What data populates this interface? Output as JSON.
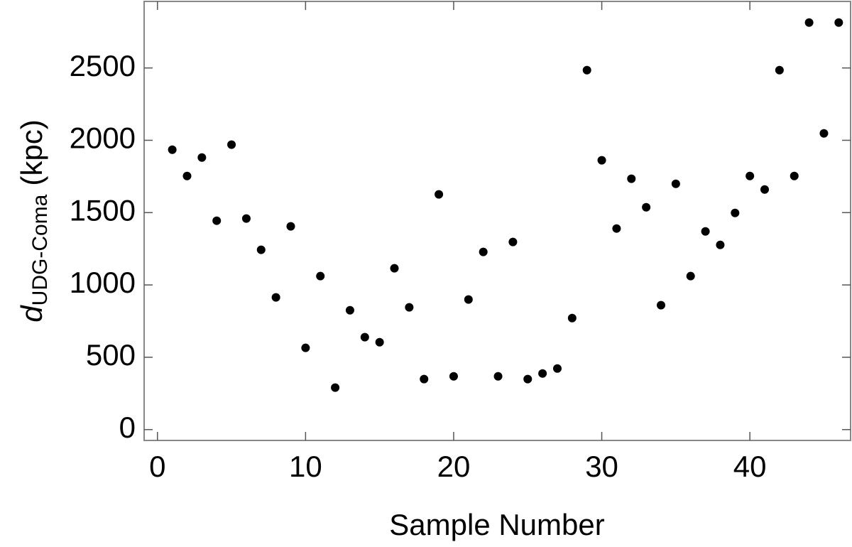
{
  "chart_data": {
    "type": "scatter",
    "x_label": "Sample Number",
    "y_label": {
      "symbol": "d",
      "subscript": "UDG-Coma",
      "unit": "(kpc)"
    },
    "color": "#000000",
    "x": [
      1,
      2,
      3,
      4,
      5,
      6,
      7,
      8,
      9,
      10,
      11,
      12,
      13,
      14,
      15,
      16,
      17,
      18,
      19,
      20,
      21,
      22,
      23,
      24,
      25,
      26,
      27,
      28,
      29,
      30,
      31,
      32,
      33,
      34,
      35,
      36,
      37,
      38,
      39,
      40,
      41,
      42,
      43,
      44,
      45,
      46
    ],
    "values": [
      1935,
      1753,
      1881,
      1444,
      1970,
      1459,
      1243,
      914,
      1405,
      565,
      1061,
      290,
      825,
      639,
      604,
      1115,
      845,
      349,
      1626,
      368,
      899,
      1228,
      368,
      1297,
      349,
      388,
      422,
      771,
      2485,
      1862,
      1390,
      1734,
      1537,
      860,
      1699,
      1061,
      1370,
      1277,
      1498,
      1753,
      1660,
      2485,
      1753,
      2814,
      2048,
      2814
    ],
    "xlim": [
      -0.9,
      46.8
    ],
    "ylim": [
      -75,
      2960
    ],
    "xticks": [
      0,
      10,
      20,
      30,
      40
    ],
    "yticks": [
      0,
      500,
      1000,
      1500,
      2000,
      2500
    ]
  }
}
